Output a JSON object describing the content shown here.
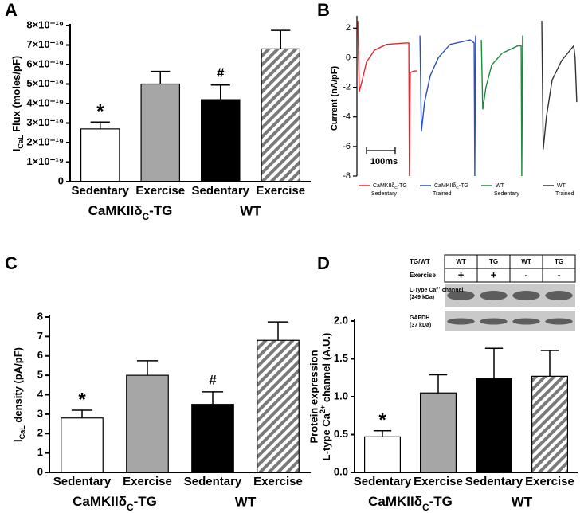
{
  "chart_data": [
    {
      "type": "bar",
      "letter": "A",
      "ylabel": [
        "I",
        "CaL",
        " Flux  (moles/pF)"
      ],
      "categories": [
        "Sedentary",
        "Exercise",
        "Sedentary",
        "Exercise"
      ],
      "groups": [
        [
          "CaMKIIδ",
          "C",
          "-TG"
        ],
        "WT"
      ],
      "values": [
        2.7e-19,
        5e-19,
        4.2e-19,
        6.8e-19
      ],
      "errors": [
        3.5e-20,
        6.5e-20,
        7.5e-20,
        9.5e-20
      ],
      "annotations": [
        "*",
        null,
        "#",
        null
      ],
      "fills": [
        "#ffffff",
        "#a6a6a6",
        "#000000",
        "hatch"
      ],
      "ylim": [
        0,
        8e-19
      ],
      "yticks": [
        0,
        {
          "value": 1e-19,
          "label": "1×10⁻¹⁹"
        },
        {
          "value": 2e-19,
          "label": "2×10⁻¹⁹"
        },
        {
          "value": 3e-19,
          "label": "3×10⁻¹⁹"
        },
        {
          "value": 4e-19,
          "label": "4×10⁻¹⁹"
        },
        {
          "value": 5e-19,
          "label": "5×10⁻¹⁹"
        },
        {
          "value": 6e-19,
          "label": "6×10⁻¹⁹"
        },
        {
          "value": 7e-19,
          "label": "7×10⁻¹⁹"
        },
        {
          "value": 8e-19,
          "label": "8×10⁻¹⁹"
        }
      ]
    },
    {
      "type": "line",
      "letter": "B",
      "ylabel": "Current (nA/pF)",
      "xlim": [
        0,
        770
      ],
      "ylim": [
        -8,
        2.5
      ],
      "yticks": [
        -8,
        -6,
        -4,
        -2,
        0,
        2
      ],
      "scale_bar": {
        "length": 100,
        "label": "100ms"
      },
      "series": [
        {
          "name": [
            [
              "CaMKIIδ",
              "C",
              "-TG"
            ],
            "Sedentary"
          ],
          "color": "#e8262b",
          "x": [
            3,
            8,
            19,
            33,
            61,
            103,
            172,
            181,
            183,
            186,
            200,
            211
          ],
          "values": [
            2.5,
            -2.3,
            -1.5,
            -0.3,
            0.5,
            0.9,
            1.0,
            1.0,
            -8,
            -1,
            -0.9,
            -0.9
          ]
        },
        {
          "name": [
            [
              "CaMKIIδ",
              "C",
              "-TG"
            ],
            "Trained"
          ],
          "color": "#2e4fb5",
          "x": [
            220,
            225,
            236,
            256,
            284,
            325,
            395,
            409,
            411,
            414
          ],
          "values": [
            1.5,
            -5,
            -3,
            -1.2,
            0,
            0.9,
            1.2,
            1.0,
            -8,
            1.5
          ]
        },
        {
          "name": [
            [
              "WT"
            ],
            "Sedentary"
          ],
          "color": "#1e8a3e",
          "x": [
            434,
            439,
            450,
            470,
            506,
            561,
            573,
            575,
            578
          ],
          "values": [
            1.2,
            -3.5,
            -2,
            -0.5,
            0.3,
            0.8,
            0.8,
            -8,
            1.5
          ]
        },
        {
          "name": [
            [
              "WT"
            ],
            "Trained"
          ],
          "color": "#333333",
          "x": [
            645,
            650,
            661,
            681,
            714,
            756,
            761,
            767
          ],
          "values": [
            2.5,
            -6.2,
            -4,
            -1.5,
            -0.2,
            0.8,
            0,
            -3
          ]
        }
      ]
    },
    {
      "type": "bar",
      "letter": "C",
      "ylabel": [
        "I",
        "CaL",
        " density (pA/pF)"
      ],
      "categories": [
        "Sedentary",
        "Exercise",
        "Sedentary",
        "Exercise"
      ],
      "groups": [
        [
          "CaMKIIδ",
          "C",
          "-TG"
        ],
        "WT"
      ],
      "values": [
        2.8,
        5.0,
        3.5,
        6.8
      ],
      "errors": [
        0.4,
        0.75,
        0.65,
        0.95
      ],
      "annotations": [
        "*",
        null,
        "#",
        null
      ],
      "fills": [
        "#ffffff",
        "#a6a6a6",
        "#000000",
        "hatch"
      ],
      "ylim": [
        0,
        8
      ],
      "yticks": [
        0,
        1,
        2,
        3,
        4,
        5,
        6,
        7,
        8
      ]
    },
    {
      "type": "bar",
      "letter": "D",
      "ylabel": [
        "Protein expression",
        [
          "L-type Ca",
          "2+",
          " channel (A.U.)"
        ]
      ],
      "categories": [
        "Sedentary",
        "Exercise",
        "Sedentary",
        "Exercise"
      ],
      "groups": [
        [
          "CaMKIIδ",
          "C",
          "-TG"
        ],
        "WT"
      ],
      "values": [
        0.47,
        1.05,
        1.24,
        1.27
      ],
      "errors": [
        0.08,
        0.24,
        0.4,
        0.34
      ],
      "annotations": [
        "*",
        null,
        null,
        null
      ],
      "fills": [
        "#ffffff",
        "#a6a6a6",
        "#000000",
        "hatch"
      ],
      "ylim": [
        0,
        2
      ],
      "yticks": [
        {
          "value": 0,
          "label": "0.0"
        },
        0.5,
        {
          "value": 1,
          "label": "1.0"
        },
        1.5,
        {
          "value": 2,
          "label": "2.0"
        }
      ],
      "inset": {
        "row_labels": [
          "TG/WT",
          "Exercise"
        ],
        "tg_wt": [
          "WT",
          "TG",
          "WT",
          "TG"
        ],
        "exercise": [
          "+",
          "+",
          "-",
          "-"
        ],
        "bands": [
          {
            "name": [
              "L-Type Ca",
              "2+",
              " channel"
            ],
            "size": "(249 kDa)"
          },
          {
            "name": "GAPDH",
            "size": "(37 kDa)"
          }
        ]
      }
    }
  ]
}
